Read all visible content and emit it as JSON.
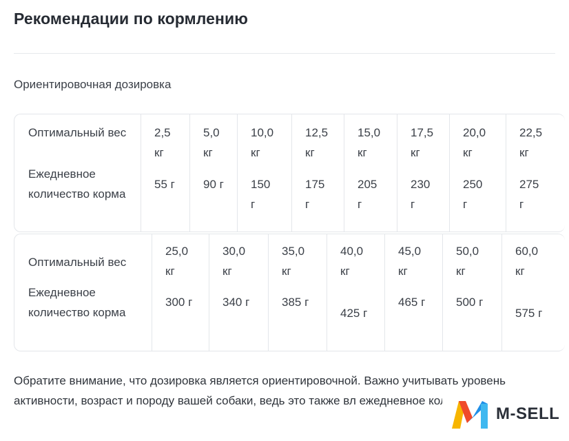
{
  "title": "Рекомендации по кормлению",
  "subtitle": "Ориентировочная дозировка",
  "table1": {
    "weight_label": "Оптимальный вес",
    "amount_label": "Ежедневное количество корма",
    "weights": [
      "2,5 кг",
      "5,0 кг",
      "10,0 кг",
      "12,5 кг",
      "15,0 кг",
      "17,5 кг",
      "20,0 кг",
      "22,5 кг"
    ],
    "amounts": [
      "55 г",
      "90 г",
      "150 г",
      "175 г",
      "205 г",
      "230 г",
      "250 г",
      "275 г"
    ]
  },
  "table2": {
    "weight_label": "Оптимальный вес",
    "amount_label": "Ежедневное количество корма",
    "weights": [
      "25,0 кг",
      "30,0 кг",
      "35,0 кг",
      "40,0 кг",
      "45,0 кг",
      "50,0 кг",
      "60,0 кг"
    ],
    "amounts": [
      "300 г",
      "340 г",
      "385 г",
      "425 г",
      "465 г",
      "500 г",
      "575 г"
    ]
  },
  "note": "Обратите внимание, что дозировка является ориентировочной. Важно учитывать уровень активности, возраст и породу вашей собаки, ведь это также вл ежедневное количество еды.",
  "logo": {
    "text": "M-SELL",
    "icon": "m-sell-logo-icon",
    "colors": [
      "#f7b500",
      "#f04a2a",
      "#1e8fe8",
      "#3fb8f0"
    ]
  }
}
